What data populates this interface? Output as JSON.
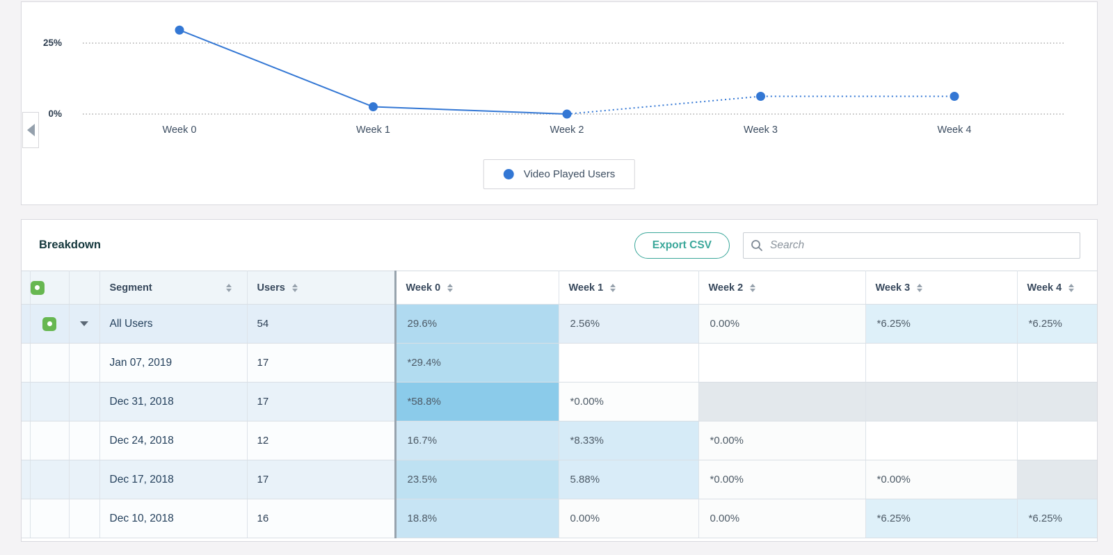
{
  "chart": {
    "legend_label": "Video Played Users",
    "series_color": "#3377d4",
    "grid_color": "#9a9a9a"
  },
  "chart_data": {
    "type": "line",
    "x": [
      "Week 0",
      "Week 1",
      "Week 2",
      "Week 3",
      "Week 4"
    ],
    "series": [
      {
        "name": "Video Played Users",
        "values": [
          29.6,
          2.56,
          0.0,
          6.25,
          6.25
        ],
        "color": "#3377d4",
        "dotted_from_index": 2
      }
    ],
    "yticks": [
      25,
      0
    ],
    "ytick_labels": [
      "25%",
      "0%"
    ],
    "ylim": [
      0,
      39
    ],
    "grid": "dotted-horizontal",
    "legend_position": "bottom-center"
  },
  "breakdown": {
    "title": "Breakdown",
    "export_label": "Export CSV",
    "search_placeholder": "Search",
    "accent_teal": "#3aa79a",
    "table": {
      "columns": [
        "Segment",
        "Users",
        "Week 0",
        "Week 1",
        "Week 2",
        "Week 3",
        "Week 4"
      ],
      "divider_color": "#97a3ad",
      "rows": [
        {
          "segment": "All Users",
          "users": "54",
          "selected": true,
          "expandable": true,
          "row_bg": "#e3eef8",
          "cells": [
            {
              "text": "29.6%",
              "bg": "#b0daf0"
            },
            {
              "text": "2.56%",
              "bg": "#e4eff8"
            },
            {
              "text": "0.00%",
              "bg": "#fafcfc"
            },
            {
              "text": "*6.25%",
              "bg": "#def0f9"
            },
            {
              "text": "*6.25%",
              "bg": "#def0f9"
            }
          ]
        },
        {
          "segment": "Jan 07, 2019",
          "users": "17",
          "selected": false,
          "expandable": false,
          "row_bg": "#fbfdfe",
          "cells": [
            {
              "text": "*29.4%",
              "bg": "#b2dcf0"
            },
            {
              "text": "",
              "bg": "#ffffff"
            },
            {
              "text": "",
              "bg": "#ffffff"
            },
            {
              "text": "",
              "bg": "#ffffff"
            },
            {
              "text": "",
              "bg": "#ffffff"
            }
          ]
        },
        {
          "segment": "Dec 31, 2018",
          "users": "17",
          "selected": false,
          "expandable": false,
          "row_bg": "#e9f2f9",
          "cells": [
            {
              "text": "*58.8%",
              "bg": "#8bcbea"
            },
            {
              "text": "*0.00%",
              "bg": "#fcfdfd"
            },
            {
              "text": "",
              "bg": "#e3e8ec"
            },
            {
              "text": "",
              "bg": "#e3e8ec"
            },
            {
              "text": "",
              "bg": "#e3e8ec"
            }
          ]
        },
        {
          "segment": "Dec 24, 2018",
          "users": "12",
          "selected": false,
          "expandable": false,
          "row_bg": "#fbfdfe",
          "cells": [
            {
              "text": "16.7%",
              "bg": "#cfe7f5"
            },
            {
              "text": "*8.33%",
              "bg": "#d6ebf7"
            },
            {
              "text": "*0.00%",
              "bg": "#fbfcfc"
            },
            {
              "text": "",
              "bg": "#ffffff"
            },
            {
              "text": "",
              "bg": "#ffffff"
            }
          ]
        },
        {
          "segment": "Dec 17, 2018",
          "users": "17",
          "selected": false,
          "expandable": false,
          "row_bg": "#e9f2f9",
          "cells": [
            {
              "text": "23.5%",
              "bg": "#bee1f2"
            },
            {
              "text": "5.88%",
              "bg": "#d9ecf8"
            },
            {
              "text": "*0.00%",
              "bg": "#fbfcfc"
            },
            {
              "text": "*0.00%",
              "bg": "#fbfcfc"
            },
            {
              "text": "",
              "bg": "#e3e8ec"
            }
          ]
        },
        {
          "segment": "Dec 10, 2018",
          "users": "16",
          "selected": false,
          "expandable": false,
          "row_bg": "#fbfdfe",
          "cells": [
            {
              "text": "18.8%",
              "bg": "#c7e4f4"
            },
            {
              "text": "0.00%",
              "bg": "#fbfcfc"
            },
            {
              "text": "0.00%",
              "bg": "#fbfcfc"
            },
            {
              "text": "*6.25%",
              "bg": "#def0f9"
            },
            {
              "text": "*6.25%",
              "bg": "#def0f9"
            }
          ]
        }
      ]
    }
  }
}
